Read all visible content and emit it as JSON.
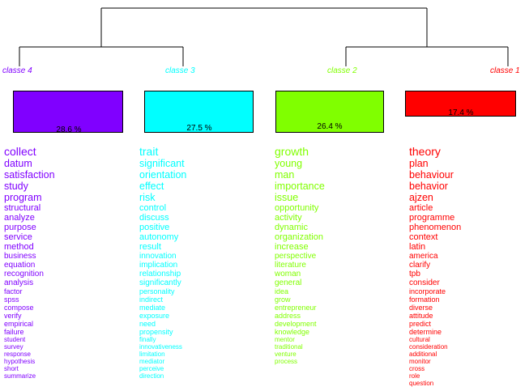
{
  "classes": [
    {
      "label": "classe  4",
      "percent": "28.6 %",
      "color": "#8000ff",
      "words": [
        "collect",
        "datum",
        "satisfaction",
        "study",
        "program",
        "structural",
        "analyze",
        "purpose",
        "service",
        "method",
        "business",
        "equation",
        "recognition",
        "analysis",
        "factor",
        "spss",
        "compose",
        "verify",
        "empirical",
        "failure",
        "student",
        "survey",
        "response",
        "hypothesis",
        "short",
        "summarize"
      ]
    },
    {
      "label": "classe  3",
      "percent": "27.5 %",
      "color": "#00ffff",
      "words": [
        "trait",
        "significant",
        "orientation",
        "effect",
        "risk",
        "control",
        "discuss",
        "positive",
        "autonomy",
        "result",
        "innovation",
        "implication",
        "relationship",
        "significantly",
        "personality",
        "indirect",
        "mediate",
        "exposure",
        "need",
        "propensity",
        "finally",
        "innovativeness",
        "limitation",
        "mediator",
        "perceive",
        "direction"
      ]
    },
    {
      "label": "classe  2",
      "percent": "26.4 %",
      "color": "#80ff00",
      "words": [
        "growth",
        "young",
        "man",
        "importance",
        "issue",
        "opportunity",
        "activity",
        "dynamic",
        "organization",
        "increase",
        "perspective",
        "literature",
        "woman",
        "general",
        "idea",
        "grow",
        "entrepreneur",
        "address",
        "development",
        "knowledge",
        "mentor",
        "traditional",
        "venture",
        "process"
      ]
    },
    {
      "label": "classe  1",
      "percent": "17.4 %",
      "color": "#ff0000",
      "words": [
        "theory",
        "plan",
        "behaviour",
        "behavior",
        "ajzen",
        "article",
        "programme",
        "phenomenon",
        "context",
        "latin",
        "america",
        "clarify",
        "tpb",
        "consider",
        "incorporate",
        "formation",
        "diverse",
        "attitude",
        "predict",
        "determine",
        "cultural",
        "consideration",
        "additional",
        "monitor",
        "cross",
        "role",
        "question"
      ]
    }
  ]
}
